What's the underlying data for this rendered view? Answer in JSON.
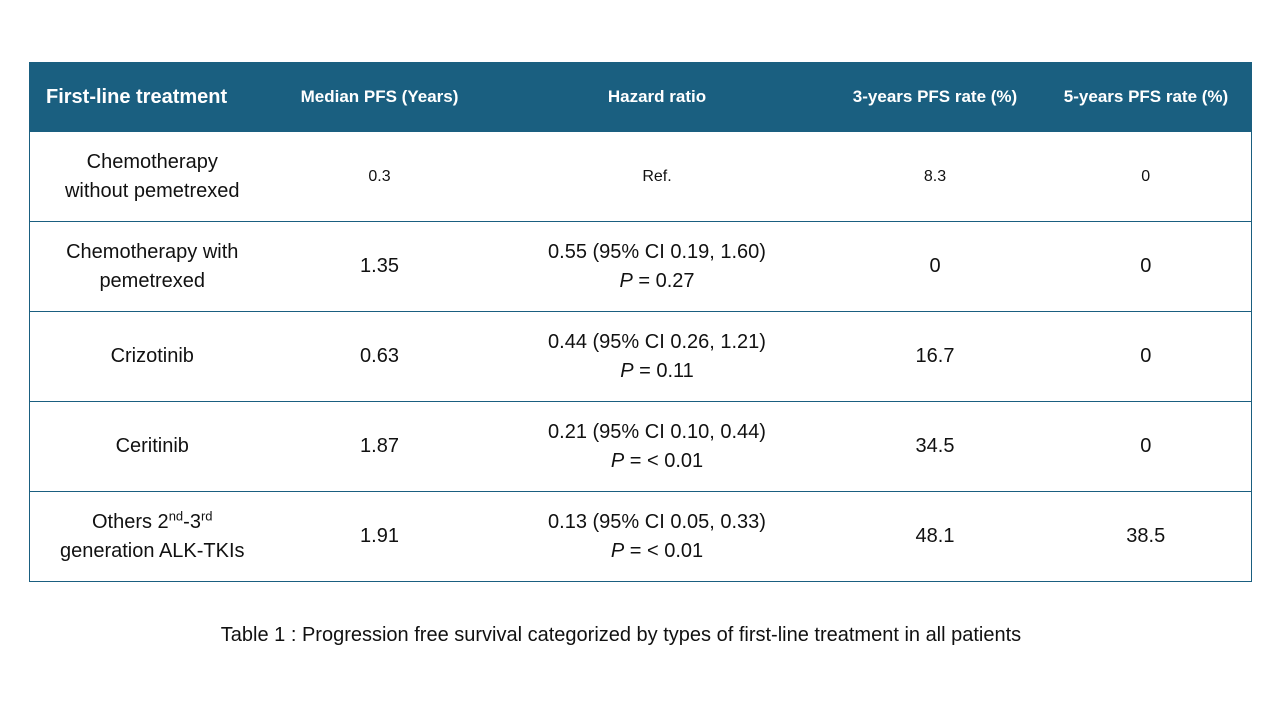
{
  "table": {
    "headers": [
      "First-line treatment",
      "Median PFS (Years)",
      "Hazard ratio",
      "3-years PFS rate (%)",
      "5-years PFS rate (%)"
    ],
    "rows": [
      {
        "treatment_line1": "Chemotherapy",
        "treatment_line2": "without pemetrexed",
        "median": "0.3",
        "hr_line1": "Ref.",
        "hr_p_label": "",
        "hr_p_value": "",
        "pfs3": "8.3",
        "pfs5": "0"
      },
      {
        "treatment_line1": "Chemotherapy with",
        "treatment_line2": "pemetrexed",
        "median": "1.35",
        "hr_line1": "0.55  (95% CI  0.19, 1.60)",
        "hr_p_label": "P",
        "hr_p_value": " = 0.27",
        "pfs3": "0",
        "pfs5": "0"
      },
      {
        "treatment_line1": "Crizotinib",
        "treatment_line2": "",
        "median": "0.63",
        "hr_line1": "0.44  (95% CI  0.26, 1.21)",
        "hr_p_label": "P",
        "hr_p_value": " = 0.11",
        "pfs3": "16.7",
        "pfs5": "0"
      },
      {
        "treatment_line1": "Ceritinib",
        "treatment_line2": "",
        "median": "1.87",
        "hr_line1": "0.21 (95% CI  0.10, 0.44)",
        "hr_p_label": "P",
        "hr_p_value": " = < 0.01",
        "pfs3": "34.5",
        "pfs5": "0"
      },
      {
        "treatment_prefix": "Others 2",
        "treatment_sup1": "nd",
        "treatment_mid": "-3",
        "treatment_sup2": "rd",
        "treatment_line2": "generation ALK-TKIs",
        "median": "1.91",
        "hr_line1": "0.13  (95% CI  0.05, 0.33)",
        "hr_p_label": "P",
        "hr_p_value": " = < 0.01",
        "pfs3": "48.1",
        "pfs5": "38.5"
      }
    ]
  },
  "caption": "Table 1 : Progression free survival categorized by types of first-line treatment  in all patients",
  "colors": {
    "header_bg": "#1a5f80",
    "header_text": "#ffffff",
    "border": "#1a5f80"
  }
}
